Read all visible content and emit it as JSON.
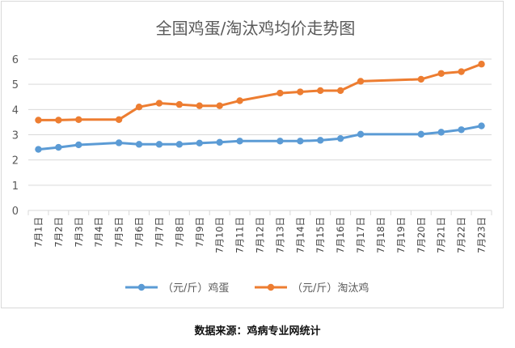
{
  "chart_data": {
    "type": "line",
    "title": "全国鸡蛋/淘汰鸡均价走势图",
    "categories": [
      "7月1日",
      "7月2日",
      "7月3日",
      "7月4日",
      "7月5日",
      "7月6日",
      "7月7日",
      "7月8日",
      "7月9日",
      "7月10日",
      "7月11日",
      "7月12日",
      "7月13日",
      "7月14日",
      "7月15日",
      "7月16日",
      "7月17日",
      "7月18日",
      "7月19日",
      "7月20日",
      "7月21日",
      "7月22日",
      "7月23日"
    ],
    "series": [
      {
        "name": "（元/斤）鸡蛋",
        "color": "#5b9bd5",
        "values": [
          2.42,
          2.5,
          2.6,
          null,
          2.68,
          2.62,
          2.62,
          2.62,
          2.67,
          2.7,
          2.75,
          null,
          2.75,
          2.75,
          2.78,
          2.85,
          3.02,
          null,
          null,
          3.02,
          3.1,
          3.2,
          3.35
        ]
      },
      {
        "name": "（元/斤）淘汰鸡",
        "color": "#ed7d31",
        "values": [
          3.58,
          3.58,
          3.6,
          null,
          3.6,
          4.1,
          4.25,
          4.2,
          4.15,
          4.15,
          4.35,
          null,
          4.65,
          4.7,
          4.75,
          4.75,
          5.12,
          null,
          null,
          5.2,
          5.43,
          5.5,
          5.8
        ]
      }
    ],
    "ylim": [
      0,
      6
    ],
    "yticks": [
      "0",
      "1",
      "2",
      "3",
      "4",
      "5",
      "6"
    ],
    "grid": true,
    "legend": "bottom",
    "xlabel": "",
    "ylabel": ""
  },
  "source_text": "数据来源：鸡病专业网统计"
}
